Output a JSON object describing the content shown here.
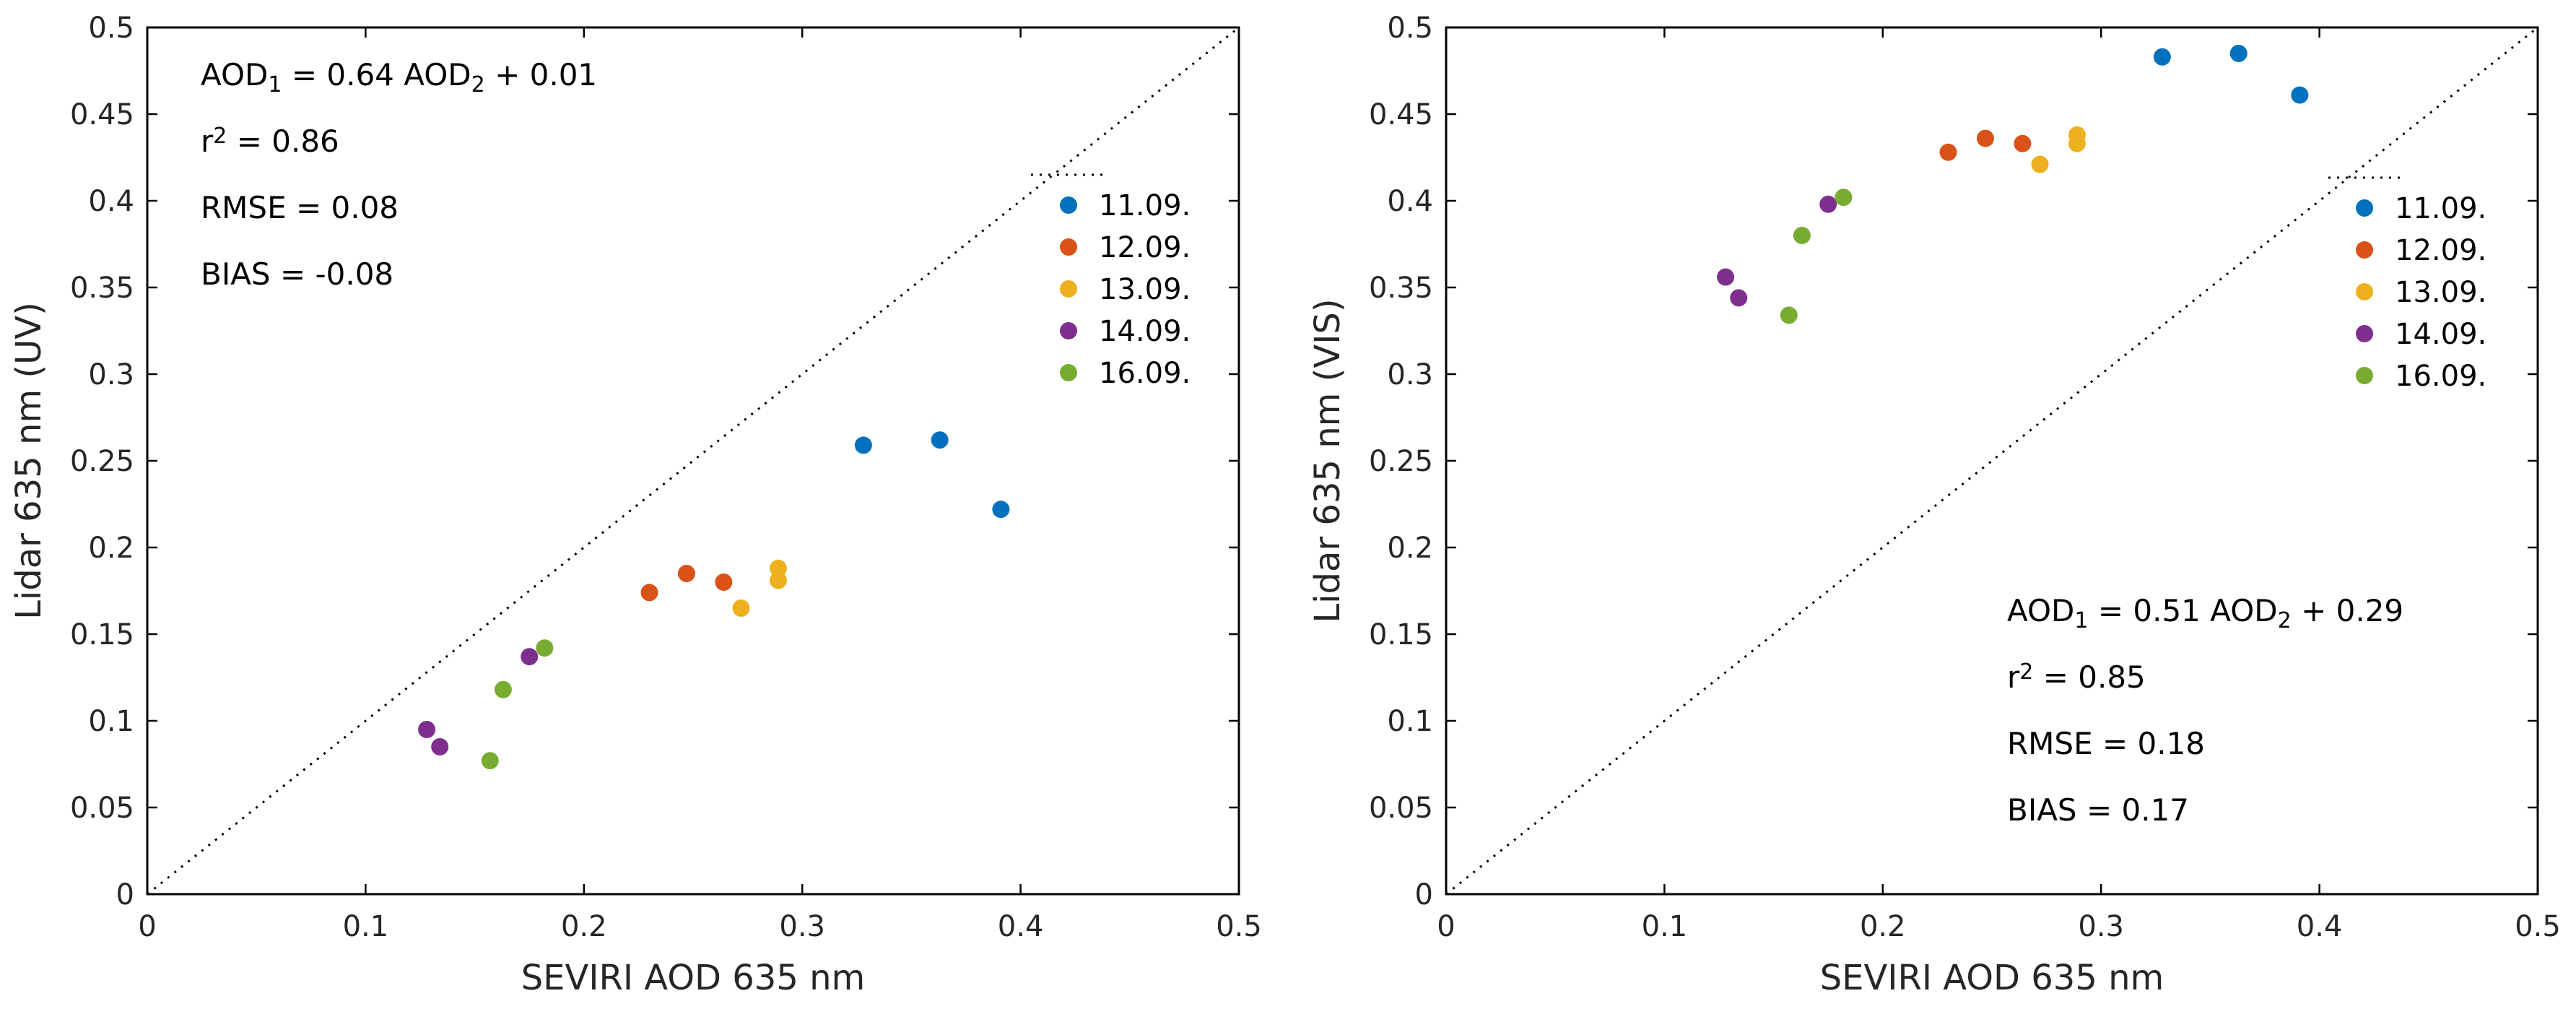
{
  "colors": {
    "11.09.": "#0072BD",
    "12.09.": "#D95319",
    "13.09.": "#EDB120",
    "14.09.": "#7E2F8E",
    "16.09.": "#77AC30"
  },
  "chart_data": [
    {
      "type": "scatter",
      "xlabel": "SEVIRI AOD 635 nm",
      "ylabel": "Lidar 635 nm (UV)",
      "xlim": [
        0,
        0.5
      ],
      "ylim": [
        0,
        0.5
      ],
      "xticks": [
        "0",
        "0.1",
        "0.2",
        "0.3",
        "0.4",
        "0.5"
      ],
      "yticks": [
        "0",
        "0.05",
        "0.1",
        "0.15",
        "0.2",
        "0.25",
        "0.3",
        "0.35",
        "0.4",
        "0.45",
        "0.5"
      ],
      "reference_line": "1:1",
      "legend": [
        "11.09.",
        "12.09.",
        "13.09.",
        "14.09.",
        "16.09."
      ],
      "legend_position": "right",
      "annotation_position": "top-left",
      "annotation": {
        "equation": {
          "a": "AOD",
          "sub1": "1",
          "mid": " = 0.64  AOD",
          "sub2": "2",
          "end": " + 0.01"
        },
        "r2": {
          "r": "r",
          "sup": "2",
          "value": "  =  0.86"
        },
        "rmse": "RMSE  = 0.08",
        "bias": "BIAS  = -0.08"
      },
      "series": [
        {
          "name": "11.09.",
          "x": [
            0.328,
            0.363,
            0.391
          ],
          "y": [
            0.259,
            0.262,
            0.222
          ]
        },
        {
          "name": "12.09.",
          "x": [
            0.23,
            0.247,
            0.264
          ],
          "y": [
            0.174,
            0.185,
            0.18
          ]
        },
        {
          "name": "13.09.",
          "x": [
            0.272,
            0.289,
            0.289
          ],
          "y": [
            0.165,
            0.181,
            0.188
          ]
        },
        {
          "name": "14.09.",
          "x": [
            0.128,
            0.134,
            0.175
          ],
          "y": [
            0.095,
            0.085,
            0.137
          ]
        },
        {
          "name": "16.09.",
          "x": [
            0.157,
            0.163,
            0.182
          ],
          "y": [
            0.077,
            0.118,
            0.142
          ]
        }
      ]
    },
    {
      "type": "scatter",
      "xlabel": "SEVIRI AOD 635 nm",
      "ylabel": "Lidar 635 nm (VIS)",
      "xlim": [
        0,
        0.5
      ],
      "ylim": [
        0,
        0.5
      ],
      "xticks": [
        "0",
        "0.1",
        "0.2",
        "0.3",
        "0.4",
        "0.5"
      ],
      "yticks": [
        "0",
        "0.05",
        "0.1",
        "0.15",
        "0.2",
        "0.25",
        "0.3",
        "0.35",
        "0.4",
        "0.45",
        "0.5"
      ],
      "reference_line": "1:1",
      "legend": [
        "11.09.",
        "12.09.",
        "13.09.",
        "14.09.",
        "16.09."
      ],
      "legend_position": "right",
      "annotation_position": "bottom-right",
      "annotation": {
        "equation": {
          "a": "AOD",
          "sub1": "1",
          "mid": " = 0.51  AOD",
          "sub2": "2",
          "end": " + 0.29"
        },
        "r2": {
          "r": "r",
          "sup": "2",
          "value": "  =  0.85"
        },
        "rmse": "RMSE  = 0.18",
        "bias": "BIAS  = 0.17"
      },
      "series": [
        {
          "name": "11.09.",
          "x": [
            0.328,
            0.363,
            0.391
          ],
          "y": [
            0.483,
            0.485,
            0.461
          ]
        },
        {
          "name": "12.09.",
          "x": [
            0.23,
            0.247,
            0.264
          ],
          "y": [
            0.428,
            0.436,
            0.433
          ]
        },
        {
          "name": "13.09.",
          "x": [
            0.272,
            0.289,
            0.289
          ],
          "y": [
            0.421,
            0.433,
            0.438
          ]
        },
        {
          "name": "14.09.",
          "x": [
            0.128,
            0.134,
            0.175
          ],
          "y": [
            0.356,
            0.344,
            0.398
          ]
        },
        {
          "name": "16.09.",
          "x": [
            0.157,
            0.163,
            0.182
          ],
          "y": [
            0.334,
            0.38,
            0.402
          ]
        }
      ]
    }
  ]
}
